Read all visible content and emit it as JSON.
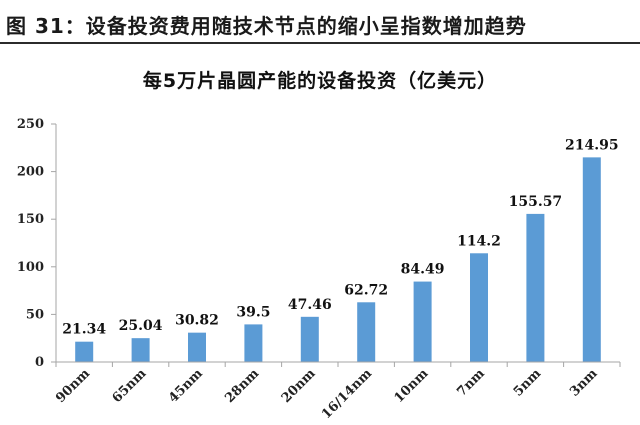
{
  "figure": {
    "title": "图 31：设备投资费用随技术节点的缩小呈指数增加趋势"
  },
  "chart_data": {
    "type": "bar",
    "title": "每5万片晶圆产能的设备投资（亿美元）",
    "xlabel": "",
    "ylabel": "",
    "categories": [
      "90nm",
      "65nm",
      "45nm",
      "28nm",
      "20nm",
      "16/14nm",
      "10nm",
      "7nm",
      "5nm",
      "3nm"
    ],
    "values": [
      21.34,
      25.04,
      30.82,
      39.5,
      47.46,
      62.72,
      84.49,
      114.2,
      155.57,
      214.95
    ],
    "value_labels": [
      "21.34",
      "25.04",
      "30.82",
      "39.5",
      "47.46",
      "62.72",
      "84.49",
      "114.2",
      "155.57",
      "214.95"
    ],
    "yticks": [
      0,
      50,
      100,
      150,
      200,
      250
    ],
    "ylim": [
      0,
      250
    ],
    "grid": false,
    "legend": "none",
    "bar_color": "#5b9bd5",
    "axis_color": "#a6a6a6"
  }
}
